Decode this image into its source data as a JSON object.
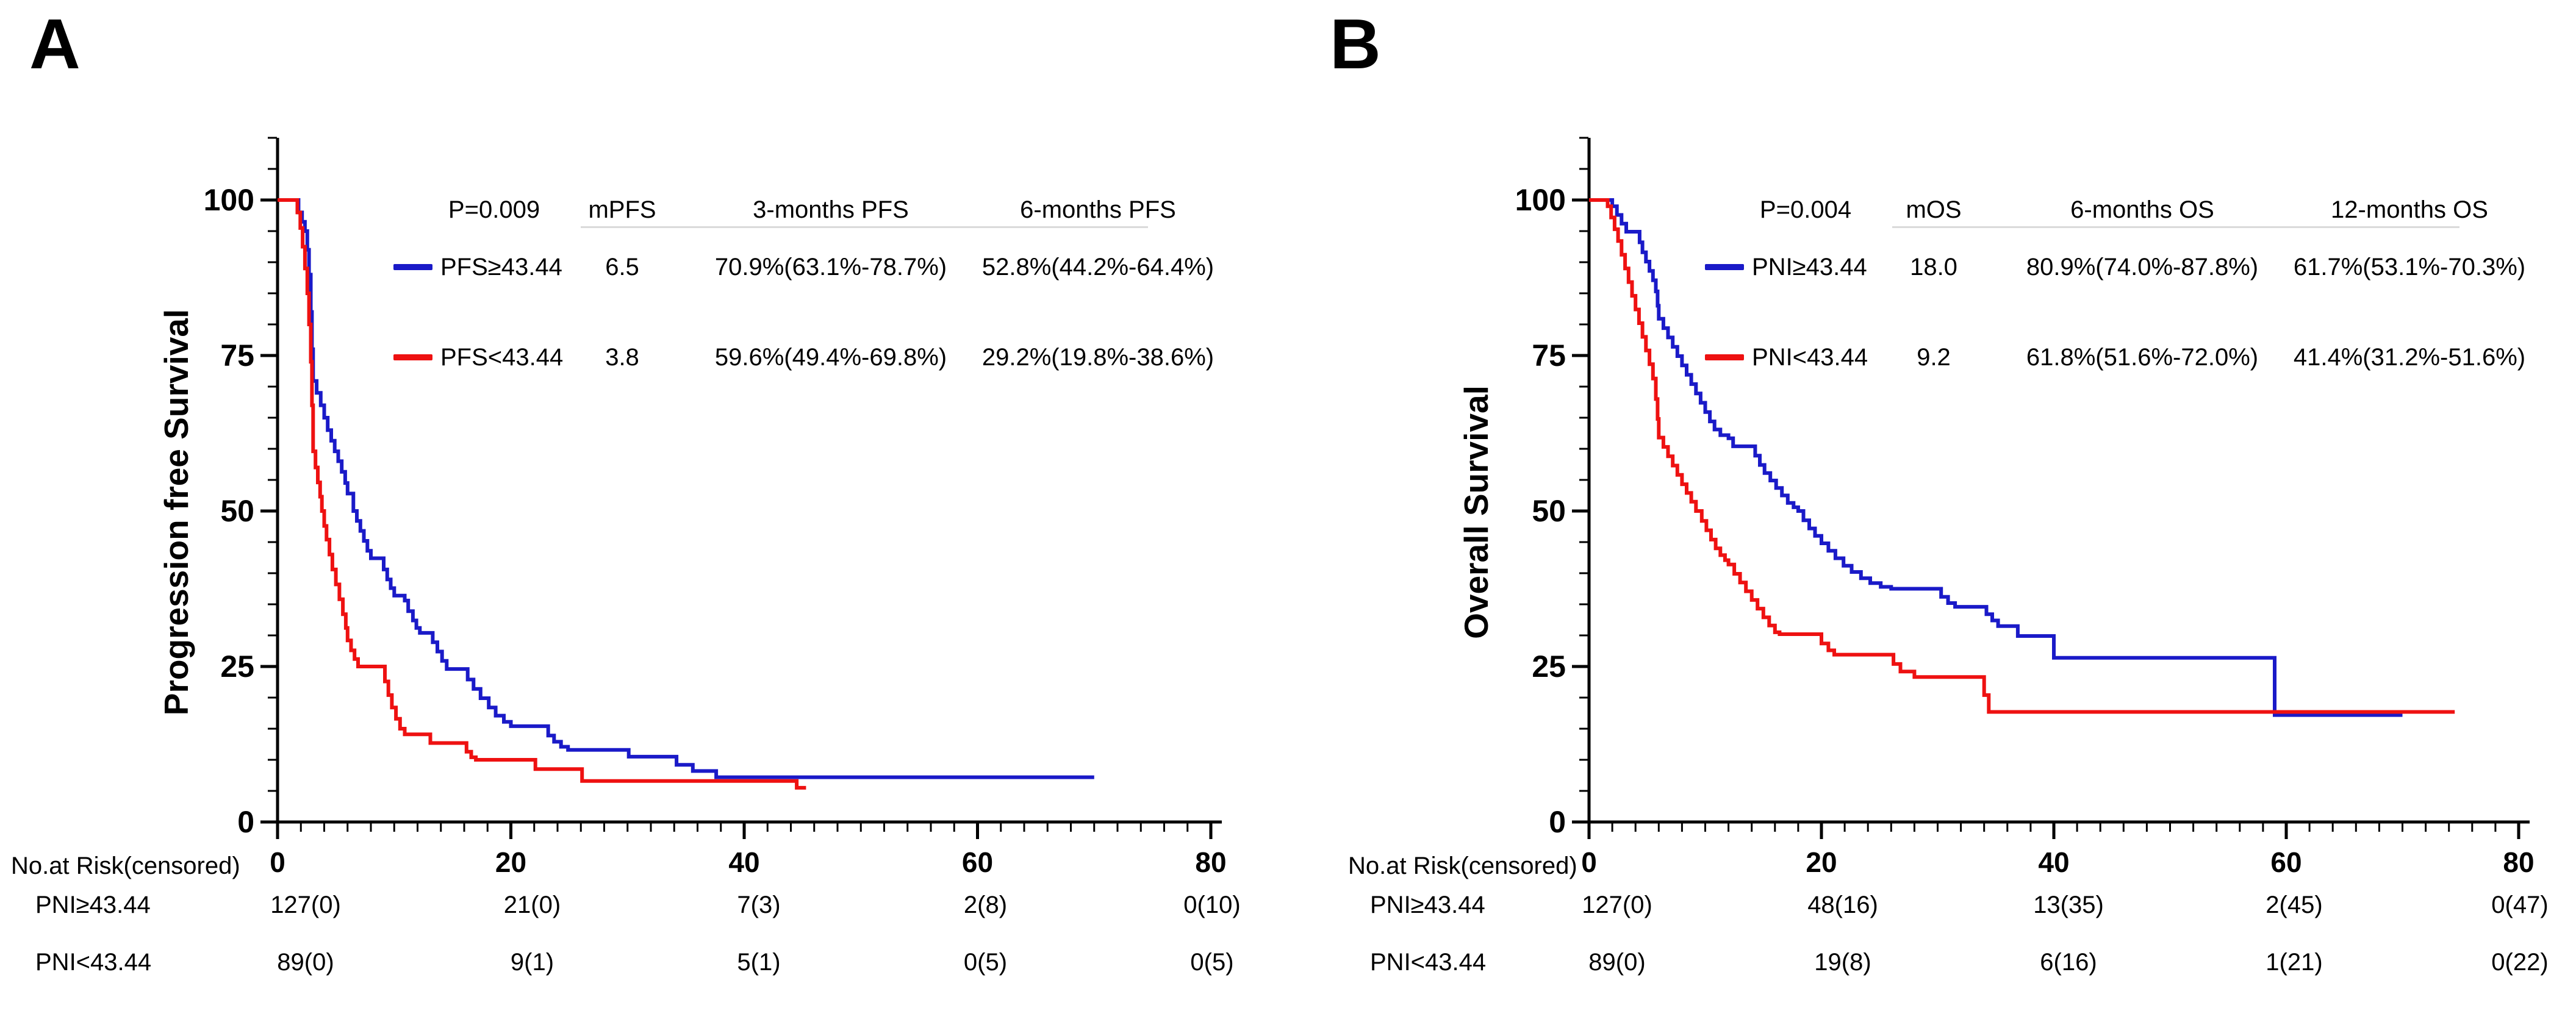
{
  "figure": {
    "panels": [
      {
        "label": "A",
        "y_axis_title": "Progression free Survival",
        "legend": {
          "header": [
            "P=0.009",
            "mPFS",
            "3-months PFS",
            "6-months PFS"
          ],
          "rows": [
            {
              "name": "PFS≥43.44",
              "median": "6.5",
              "rate1": "70.9%(63.1%-78.7%)",
              "rate2": "52.8%(44.2%-64.4%)"
            },
            {
              "name": "PFS<43.44",
              "median": "3.8",
              "rate1": "59.6%(49.4%-69.8%)",
              "rate2": "29.2%(19.8%-38.6%)"
            }
          ]
        },
        "risk_table": {
          "title": "No.at Risk(censored)",
          "rows": [
            {
              "name": "PNI≥43.44",
              "values": [
                "127(0)",
                "21(0)",
                "7(3)",
                "2(8)",
                "0(10)"
              ]
            },
            {
              "name": "PNI<43.44",
              "values": [
                "89(0)",
                "9(1)",
                "5(1)",
                "0(5)",
                "0(5)"
              ]
            }
          ]
        }
      },
      {
        "label": "B",
        "y_axis_title": "Overall Survival",
        "legend": {
          "header": [
            "P=0.004",
            "mOS",
            "6-months OS",
            "12-months OS"
          ],
          "rows": [
            {
              "name": "PNI≥43.44",
              "median": "18.0",
              "rate1": "80.9%(74.0%-87.8%)",
              "rate2": "61.7%(53.1%-70.3%)"
            },
            {
              "name": "PNI<43.44",
              "median": "9.2",
              "rate1": "61.8%(51.6%-72.0%)",
              "rate2": "41.4%(31.2%-51.6%)"
            }
          ]
        },
        "risk_table": {
          "title": "No.at Risk(censored)",
          "rows": [
            {
              "name": "PNI≥43.44",
              "values": [
                "127(0)",
                "48(16)",
                "13(35)",
                "2(45)",
                "0(47)"
              ]
            },
            {
              "name": "PNI<43.44",
              "values": [
                "89(0)",
                "19(8)",
                "6(16)",
                "1(21)",
                "0(22)"
              ]
            }
          ]
        }
      }
    ]
  },
  "chart_data": [
    {
      "type": "line",
      "style": "kaplan-meier-step",
      "title": "",
      "xlabel": "",
      "ylabel": "Progression free Survival",
      "xlim": [
        0,
        80
      ],
      "ylim": [
        0,
        100
      ],
      "xticks": [
        0,
        20,
        40,
        60,
        80
      ],
      "yticks": [
        0,
        25,
        50,
        75,
        100
      ],
      "minor_x_step": 2,
      "minor_y_step": 5,
      "grid": false,
      "legend_position": "top-inside",
      "p_value": "P=0.009",
      "series": [
        {
          "name": "PFS≥43.44",
          "color": "#1a1ac8",
          "median_months": 6.5,
          "points": [
            [
              0,
              100
            ],
            [
              1.6,
              100
            ],
            [
              1.8,
              98
            ],
            [
              2.1,
              96.5
            ],
            [
              2.35,
              95
            ],
            [
              2.55,
              92
            ],
            [
              2.7,
              88
            ],
            [
              2.85,
              82
            ],
            [
              2.95,
              76
            ],
            [
              3.05,
              70.9
            ],
            [
              3.35,
              69
            ],
            [
              3.7,
              67
            ],
            [
              4.0,
              65
            ],
            [
              4.3,
              63
            ],
            [
              4.6,
              61.3
            ],
            [
              4.9,
              59.6
            ],
            [
              5.2,
              58
            ],
            [
              5.5,
              56.3
            ],
            [
              5.8,
              54.5
            ],
            [
              6.0,
              52.8
            ],
            [
              6.5,
              50
            ],
            [
              6.8,
              48.4
            ],
            [
              7.1,
              46.8
            ],
            [
              7.4,
              45.2
            ],
            [
              7.7,
              43.6
            ],
            [
              8.0,
              42.4
            ],
            [
              8.9,
              42.4
            ],
            [
              9.1,
              40.6
            ],
            [
              9.4,
              39
            ],
            [
              9.7,
              37.6
            ],
            [
              10.0,
              36.4
            ],
            [
              10.9,
              35.6
            ],
            [
              11.2,
              33.9
            ],
            [
              11.6,
              32.4
            ],
            [
              11.9,
              31.2
            ],
            [
              12.2,
              30.4
            ],
            [
              13.0,
              30.4
            ],
            [
              13.3,
              28.9
            ],
            [
              13.7,
              27.4
            ],
            [
              14.1,
              25.9
            ],
            [
              14.5,
              24.6
            ],
            [
              15.9,
              24.6
            ],
            [
              16.3,
              22.9
            ],
            [
              16.8,
              21.4
            ],
            [
              17.4,
              19.9
            ],
            [
              18.1,
              18.4
            ],
            [
              18.7,
              17.1
            ],
            [
              19.4,
              16.1
            ],
            [
              20.0,
              15.4
            ],
            [
              22.9,
              15.4
            ],
            [
              23.2,
              13.9
            ],
            [
              23.7,
              12.9
            ],
            [
              24.3,
              12.1
            ],
            [
              24.9,
              11.6
            ],
            [
              29.9,
              11.6
            ],
            [
              30.1,
              10.5
            ],
            [
              33.9,
              10.5
            ],
            [
              34.2,
              9.2
            ],
            [
              35.4,
              9.2
            ],
            [
              35.6,
              8.2
            ],
            [
              37.4,
              8.2
            ],
            [
              37.6,
              7.2
            ],
            [
              70,
              7.2
            ]
          ]
        },
        {
          "name": "PFS<43.44",
          "color": "#ee1111",
          "median_months": 3.8,
          "points": [
            [
              0,
              100
            ],
            [
              1.5,
              100
            ],
            [
              1.7,
              98
            ],
            [
              1.95,
              95.5
            ],
            [
              2.15,
              92.5
            ],
            [
              2.35,
              89
            ],
            [
              2.55,
              85
            ],
            [
              2.7,
              80
            ],
            [
              2.85,
              74
            ],
            [
              2.95,
              67
            ],
            [
              3.05,
              59.6
            ],
            [
              3.25,
              57
            ],
            [
              3.45,
              54.6
            ],
            [
              3.65,
              52.3
            ],
            [
              3.8,
              50
            ],
            [
              4.0,
              47.6
            ],
            [
              4.2,
              45.4
            ],
            [
              4.45,
              43
            ],
            [
              4.7,
              40.6
            ],
            [
              5.0,
              38.2
            ],
            [
              5.3,
              35.8
            ],
            [
              5.6,
              33.4
            ],
            [
              5.85,
              31.2
            ],
            [
              6.0,
              29.2
            ],
            [
              6.3,
              27.6
            ],
            [
              6.6,
              26.2
            ],
            [
              6.9,
              25
            ],
            [
              9.0,
              25
            ],
            [
              9.2,
              22.6
            ],
            [
              9.5,
              20.4
            ],
            [
              9.8,
              18.4
            ],
            [
              10.15,
              16.6
            ],
            [
              10.5,
              15
            ],
            [
              10.9,
              14.1
            ],
            [
              12.9,
              14.1
            ],
            [
              13.1,
              12.7
            ],
            [
              15.9,
              12.7
            ],
            [
              16.2,
              11.3
            ],
            [
              16.6,
              10.4
            ],
            [
              17.0,
              10.0
            ],
            [
              21.8,
              10.0
            ],
            [
              22.1,
              8.5
            ],
            [
              25.8,
              8.5
            ],
            [
              26.1,
              6.6
            ],
            [
              44.2,
              6.6
            ],
            [
              44.5,
              5.5
            ],
            [
              45.3,
              5.5
            ]
          ]
        }
      ]
    },
    {
      "type": "line",
      "style": "kaplan-meier-step",
      "title": "",
      "xlabel": "",
      "ylabel": "Overall Survival",
      "xlim": [
        0,
        80
      ],
      "ylim": [
        0,
        100
      ],
      "xticks": [
        0,
        20,
        40,
        60,
        80
      ],
      "yticks": [
        0,
        25,
        50,
        75,
        100
      ],
      "minor_x_step": 2,
      "minor_y_step": 5,
      "grid": false,
      "legend_position": "top-inside",
      "p_value": "P=0.004",
      "series": [
        {
          "name": "PNI≥43.44",
          "color": "#1a1ac8",
          "median_months": 18.0,
          "points": [
            [
              0,
              100
            ],
            [
              1.8,
              100
            ],
            [
              2.0,
              99
            ],
            [
              2.4,
              97.6
            ],
            [
              2.8,
              96.2
            ],
            [
              3.2,
              94.9
            ],
            [
              4.1,
              94.9
            ],
            [
              4.35,
              93.2
            ],
            [
              4.6,
              91.6
            ],
            [
              4.9,
              90.1
            ],
            [
              5.2,
              88.6
            ],
            [
              5.5,
              87.1
            ],
            [
              5.75,
              85.3
            ],
            [
              5.9,
              83
            ],
            [
              6.0,
              80.9
            ],
            [
              6.4,
              79.4
            ],
            [
              6.8,
              77.9
            ],
            [
              7.2,
              76.4
            ],
            [
              7.6,
              74.9
            ],
            [
              8.0,
              73.4
            ],
            [
              8.4,
              71.9
            ],
            [
              8.8,
              70.4
            ],
            [
              9.2,
              68.9
            ],
            [
              9.6,
              67.4
            ],
            [
              10.0,
              65.9
            ],
            [
              10.4,
              64.4
            ],
            [
              10.8,
              63.1
            ],
            [
              11.3,
              62.2
            ],
            [
              12.0,
              61.7
            ],
            [
              12.4,
              60.4
            ],
            [
              13.9,
              60.4
            ],
            [
              14.3,
              58.9
            ],
            [
              14.7,
              57.4
            ],
            [
              15.1,
              56.1
            ],
            [
              15.6,
              54.9
            ],
            [
              16.1,
              53.7
            ],
            [
              16.6,
              52.5
            ],
            [
              17.1,
              51.3
            ],
            [
              17.6,
              50.6
            ],
            [
              18.0,
              50.0
            ],
            [
              18.45,
              48.5
            ],
            [
              18.95,
              47.2
            ],
            [
              19.45,
              46
            ],
            [
              20.0,
              44.8
            ],
            [
              20.6,
              43.6
            ],
            [
              21.2,
              42.4
            ],
            [
              21.9,
              41.2
            ],
            [
              22.6,
              40.2
            ],
            [
              23.4,
              39.2
            ],
            [
              24.2,
              38.4
            ],
            [
              25.1,
              37.8
            ],
            [
              26.0,
              37.5
            ],
            [
              29.9,
              37.5
            ],
            [
              30.3,
              36.2
            ],
            [
              30.9,
              35.2
            ],
            [
              31.5,
              34.6
            ],
            [
              33.9,
              34.6
            ],
            [
              34.2,
              33.4
            ],
            [
              34.7,
              32.4
            ],
            [
              35.2,
              31.5
            ],
            [
              36.6,
              31.5
            ],
            [
              36.9,
              29.9
            ],
            [
              39.6,
              29.9
            ],
            [
              40.0,
              26.4
            ],
            [
              58.8,
              26.4
            ],
            [
              59.0,
              17.2
            ],
            [
              70,
              17.2
            ]
          ]
        },
        {
          "name": "PNI<43.44",
          "color": "#ee1111",
          "median_months": 9.2,
          "points": [
            [
              0,
              100
            ],
            [
              1.4,
              100
            ],
            [
              1.6,
              99
            ],
            [
              1.9,
              97.2
            ],
            [
              2.2,
              95.3
            ],
            [
              2.5,
              93.4
            ],
            [
              2.8,
              91.2
            ],
            [
              3.1,
              89
            ],
            [
              3.4,
              86.8
            ],
            [
              3.7,
              84.6
            ],
            [
              4.0,
              82.4
            ],
            [
              4.3,
              80.2
            ],
            [
              4.6,
              78
            ],
            [
              4.9,
              75.8
            ],
            [
              5.2,
              73.6
            ],
            [
              5.5,
              71.3
            ],
            [
              5.75,
              68
            ],
            [
              5.9,
              64.8
            ],
            [
              6.0,
              61.8
            ],
            [
              6.4,
              60.3
            ],
            [
              6.8,
              58.8
            ],
            [
              7.2,
              57.3
            ],
            [
              7.6,
              55.8
            ],
            [
              8.0,
              54.3
            ],
            [
              8.4,
              52.9
            ],
            [
              8.8,
              51.5
            ],
            [
              9.2,
              50.0
            ],
            [
              9.7,
              48.4
            ],
            [
              10.1,
              46.9
            ],
            [
              10.5,
              45.4
            ],
            [
              10.9,
              44
            ],
            [
              11.3,
              42.9
            ],
            [
              11.7,
              42.1
            ],
            [
              12.0,
              41.4
            ],
            [
              12.5,
              39.9
            ],
            [
              13.0,
              38.5
            ],
            [
              13.5,
              37.1
            ],
            [
              14.0,
              35.7
            ],
            [
              14.5,
              34.3
            ],
            [
              15.0,
              32.9
            ],
            [
              15.5,
              31.6
            ],
            [
              16.0,
              30.5
            ],
            [
              16.4,
              30.2
            ],
            [
              19.6,
              30.2
            ],
            [
              20.0,
              28.7
            ],
            [
              20.6,
              27.6
            ],
            [
              21.1,
              26.9
            ],
            [
              25.8,
              26.9
            ],
            [
              26.2,
              25.4
            ],
            [
              26.8,
              24.2
            ],
            [
              28.0,
              23.3
            ],
            [
              33.7,
              23.3
            ],
            [
              34.0,
              20.4
            ],
            [
              34.4,
              17.7
            ],
            [
              74.5,
              17.7
            ]
          ]
        }
      ]
    }
  ]
}
